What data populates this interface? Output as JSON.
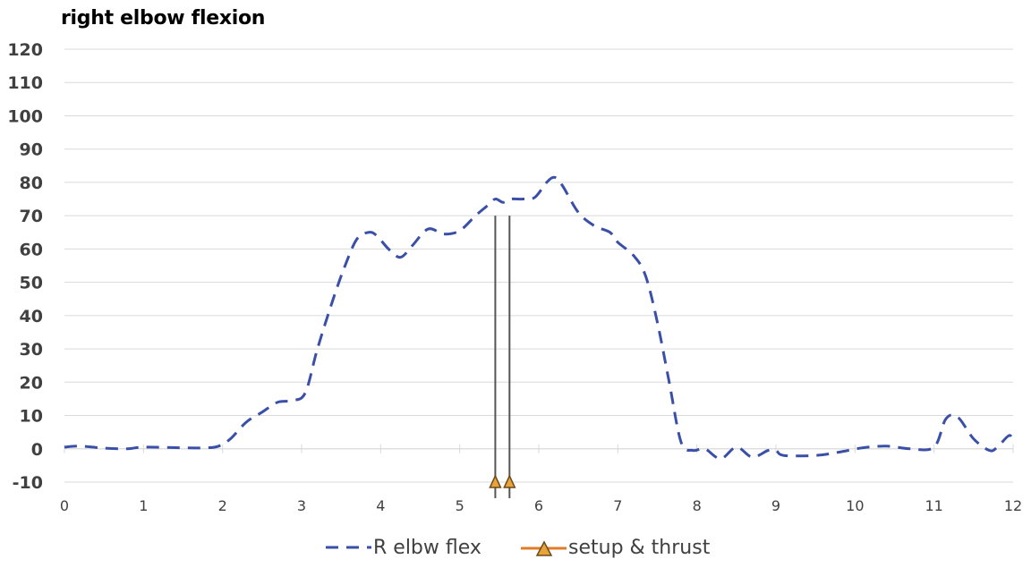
{
  "chart_data": {
    "type": "line",
    "title": "right elbow flexion",
    "xlabel": "",
    "ylabel": "",
    "xlim": [
      0,
      12
    ],
    "ylim": [
      -10,
      120
    ],
    "x_ticks": [
      "0",
      "1",
      "2",
      "3",
      "4",
      "5",
      "6",
      "7",
      "8",
      "9",
      "10",
      "11",
      "12"
    ],
    "y_ticks": [
      "120",
      "110",
      "100",
      "90",
      "80",
      "70",
      "60",
      "50",
      "40",
      "30",
      "20",
      "10",
      "0",
      "-10"
    ],
    "grid": true,
    "legend_position": "bottom",
    "series": [
      {
        "name": "R elbw flex",
        "style": "dashed",
        "color": "#3a4fa8",
        "points": [
          [
            0,
            0.5
          ],
          [
            0.2,
            0.8
          ],
          [
            0.5,
            0.2
          ],
          [
            0.8,
            0
          ],
          [
            1.0,
            0.5
          ],
          [
            1.5,
            0.3
          ],
          [
            1.8,
            0.3
          ],
          [
            1.95,
            0.8
          ],
          [
            2.1,
            3
          ],
          [
            2.3,
            8
          ],
          [
            2.5,
            11
          ],
          [
            2.7,
            14
          ],
          [
            2.9,
            14.5
          ],
          [
            3.05,
            17
          ],
          [
            3.2,
            30
          ],
          [
            3.4,
            45
          ],
          [
            3.55,
            55
          ],
          [
            3.7,
            63
          ],
          [
            3.85,
            65
          ],
          [
            3.95,
            64
          ],
          [
            4.1,
            60
          ],
          [
            4.25,
            57.5
          ],
          [
            4.4,
            61
          ],
          [
            4.6,
            66
          ],
          [
            4.8,
            64.5
          ],
          [
            5.0,
            65.5
          ],
          [
            5.2,
            70
          ],
          [
            5.35,
            73
          ],
          [
            5.45,
            75
          ],
          [
            5.55,
            74
          ],
          [
            5.65,
            75
          ],
          [
            5.8,
            75
          ],
          [
            5.95,
            75.5
          ],
          [
            6.1,
            80
          ],
          [
            6.2,
            81.5
          ],
          [
            6.3,
            79
          ],
          [
            6.5,
            71
          ],
          [
            6.7,
            67
          ],
          [
            6.9,
            65
          ],
          [
            7.0,
            62
          ],
          [
            7.2,
            58
          ],
          [
            7.35,
            52
          ],
          [
            7.5,
            38
          ],
          [
            7.65,
            20
          ],
          [
            7.8,
            2
          ],
          [
            7.95,
            -0.5
          ],
          [
            8.1,
            0
          ],
          [
            8.3,
            -3
          ],
          [
            8.5,
            0.5
          ],
          [
            8.7,
            -2.5
          ],
          [
            8.9,
            -0.5
          ],
          [
            9.0,
            -0.5
          ],
          [
            9.1,
            -2
          ],
          [
            9.5,
            -2
          ],
          [
            9.8,
            -1
          ],
          [
            10.1,
            0.3
          ],
          [
            10.4,
            0.8
          ],
          [
            10.7,
            0
          ],
          [
            11.0,
            0.5
          ],
          [
            11.15,
            9
          ],
          [
            11.3,
            9.5
          ],
          [
            11.5,
            3
          ],
          [
            11.7,
            -0.5
          ],
          [
            11.8,
            0.5
          ],
          [
            11.95,
            4
          ],
          [
            12.0,
            2
          ]
        ]
      },
      {
        "name": "setup & thrust",
        "style": "markers",
        "color": "#e07b28",
        "marker_fill": "#e8a33a",
        "points": [
          [
            5.45,
            -10
          ],
          [
            5.63,
            -10
          ]
        ]
      }
    ],
    "annotations": [
      {
        "type": "vertical-line",
        "x": 5.45,
        "from": -10,
        "to": 70,
        "color": "#555555"
      },
      {
        "type": "vertical-line",
        "x": 5.63,
        "from": -10,
        "to": 70,
        "color": "#555555"
      }
    ]
  }
}
